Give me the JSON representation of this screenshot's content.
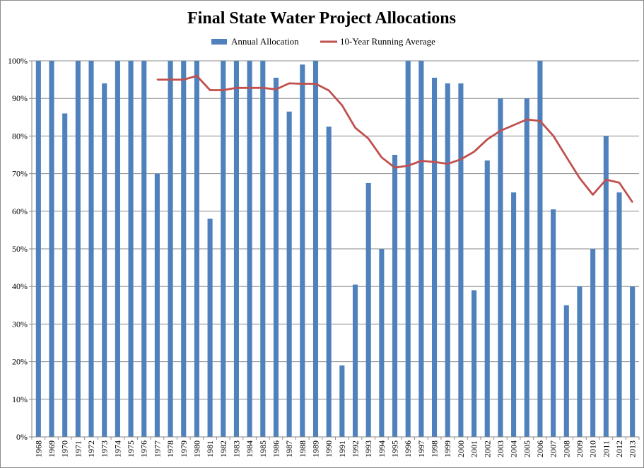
{
  "chart_data": {
    "type": "bar",
    "title": "Final State Water Project Allocations",
    "xlabel": "",
    "ylabel": "",
    "ylim": [
      0,
      100
    ],
    "y_tick_labels": [
      "0%",
      "10%",
      "20%",
      "30%",
      "40%",
      "50%",
      "60%",
      "70%",
      "80%",
      "90%",
      "100%"
    ],
    "grid": true,
    "legend_placement": "top",
    "categories": [
      "1968",
      "1969",
      "1970",
      "1971",
      "1972",
      "1973",
      "1974",
      "1975",
      "1976",
      "1977",
      "1978",
      "1979",
      "1980",
      "1981",
      "1982",
      "1983",
      "1984",
      "1985",
      "1986",
      "1987",
      "1988",
      "1989",
      "1990",
      "1991",
      "1992",
      "1993",
      "1994",
      "1995",
      "1996",
      "1997",
      "1998",
      "1999",
      "2000",
      "2001",
      "2002",
      "2003",
      "2004",
      "2005",
      "2006",
      "2007",
      "2008",
      "2009",
      "2010",
      "2011",
      "2012",
      "2013"
    ],
    "series": [
      {
        "name": "Annual Allocation",
        "type": "bar",
        "color": "#4f81bd",
        "values": [
          100,
          100,
          86,
          100,
          100,
          94,
          100,
          100,
          100,
          70,
          100,
          100,
          100,
          58,
          100,
          100,
          100,
          100,
          95.5,
          86.5,
          99,
          100,
          82.5,
          19,
          40.5,
          67.5,
          50,
          75,
          100,
          100,
          95.5,
          94,
          94,
          39,
          73.5,
          90,
          65,
          90,
          100,
          60.5,
          35,
          40,
          50,
          80,
          65,
          40
        ]
      },
      {
        "name": "10-Year Running Average",
        "type": "line",
        "color": "#c0504d",
        "values": [
          null,
          null,
          null,
          null,
          null,
          null,
          null,
          null,
          null,
          95,
          95,
          95,
          96,
          92.2,
          92.2,
          92.8,
          92.8,
          92.8,
          92.4,
          94,
          93.9,
          93.9,
          92.1,
          88.2,
          82.2,
          79.3,
          74.3,
          71.6,
          72.1,
          73.4,
          73.1,
          72.6,
          73.8,
          75.8,
          79.1,
          81.4,
          82.9,
          84.4,
          84,
          80.1,
          74.4,
          68.8,
          64.4,
          68.4,
          67.6,
          62.4
        ]
      }
    ]
  }
}
